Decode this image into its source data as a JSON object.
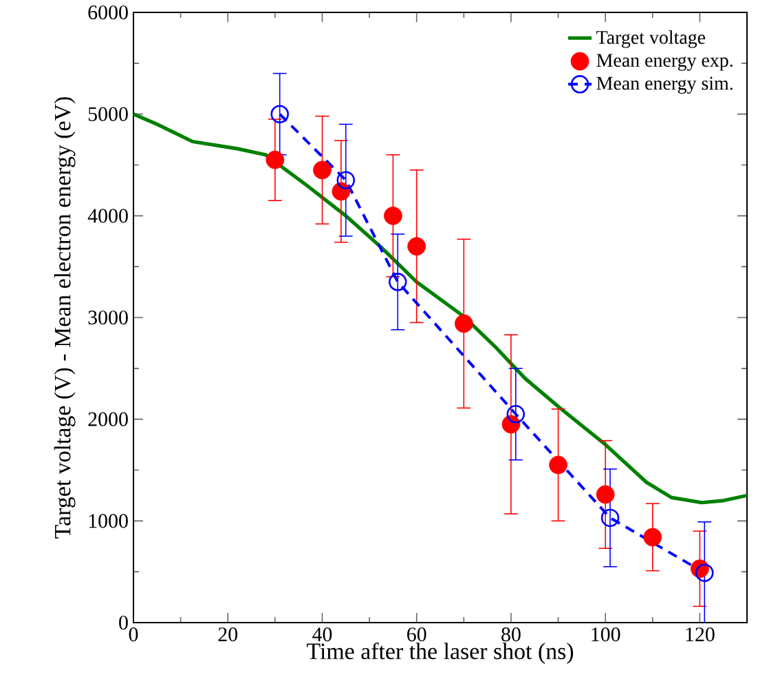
{
  "chart_data": {
    "type": "line",
    "xlabel": "Time after the laser shot (ns)",
    "ylabel": "Target voltage (V) - Mean electron energy (eV)",
    "xlim": [
      0,
      130
    ],
    "ylim": [
      0,
      6000
    ],
    "xticks": [
      0,
      20,
      40,
      60,
      80,
      100,
      120
    ],
    "yticks": [
      0,
      1000,
      2000,
      3000,
      4000,
      5000,
      6000
    ],
    "legend": "top right",
    "series": [
      {
        "name": "Target voltage",
        "color": "#008000",
        "marker": "none",
        "line_style": "solid",
        "x": [
          0,
          5,
          12.5,
          22,
          28,
          36.7,
          45,
          52.5,
          60,
          70,
          76.7,
          83,
          90.4,
          100,
          108.7,
          114,
          120.4,
          125,
          130
        ],
        "values": [
          5000,
          4900,
          4730,
          4660,
          4600,
          4300,
          4000,
          3690,
          3350,
          3010,
          2710,
          2400,
          2110,
          1750,
          1380,
          1230,
          1180,
          1200,
          1250
        ]
      },
      {
        "name": "Mean energy exp.",
        "type": "scatter",
        "color": "#ff0000",
        "marker": "circle",
        "x": [
          30,
          40,
          44,
          55,
          60,
          70,
          80,
          90,
          100,
          110,
          120
        ],
        "values": [
          4550,
          4450,
          4240,
          4000,
          3700,
          2940,
          1950,
          1550,
          1260,
          840,
          530
        ],
        "errors": [
          400,
          530,
          500,
          600,
          750,
          830,
          880,
          550,
          530,
          330,
          370
        ]
      },
      {
        "name": "Mean energy sim.",
        "type": "line",
        "color": "#0000ff",
        "marker": "circle",
        "line_style": "dashed",
        "x": [
          31,
          45,
          56,
          81,
          101,
          121
        ],
        "values": [
          5000,
          4350,
          3350,
          2050,
          1030,
          490
        ],
        "errors": [
          400,
          550,
          470,
          450,
          480,
          500
        ]
      }
    ]
  }
}
